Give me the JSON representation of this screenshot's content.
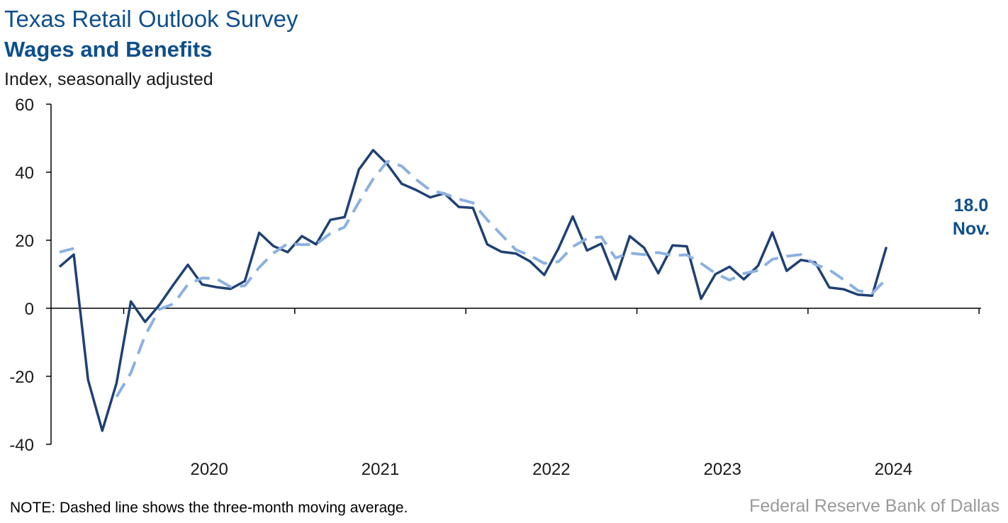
{
  "chart_data": {
    "type": "line",
    "title": "Texas Retail Outlook Survey",
    "subtitle": "Wages and Benefits",
    "ylabel": "Index, seasonally adjusted",
    "ylim": [
      -40,
      60
    ],
    "yticks": [
      -40,
      -20,
      0,
      20,
      40,
      60
    ],
    "x_tick_labels": [
      "2020",
      "2021",
      "2022",
      "2023",
      "2024"
    ],
    "x_start": "2019-08",
    "x_end": "2024-11",
    "series": [
      {
        "style": "solid",
        "color": "#1f4173",
        "values": [
          12.2,
          15.8,
          -21.0,
          -36.0,
          -22.0,
          2.0,
          -4.0,
          1.0,
          7.0,
          12.8,
          7.0,
          6.2,
          5.7,
          8.0,
          22.2,
          18.3,
          16.5,
          21.2,
          18.8,
          26.0,
          26.8,
          40.8,
          46.5,
          42.3,
          36.6,
          34.8,
          32.6,
          33.8,
          29.8,
          29.5,
          18.8,
          16.6,
          16.1,
          13.8,
          9.8,
          17.6,
          27.0,
          17.0,
          19.0,
          8.5,
          21.2,
          17.8,
          10.3,
          18.5,
          18.2,
          2.8,
          10.0,
          12.2,
          8.5,
          12.5,
          22.3,
          11.0,
          14.2,
          13.5,
          6.1,
          5.6,
          4.0,
          3.7,
          18.0
        ]
      },
      {
        "style": "dashed",
        "color": "#8cb1e0",
        "values": [
          16.5,
          17.6,
          null,
          null,
          -26.0,
          -19.0,
          -8.0,
          -0.3,
          1.3,
          7.0,
          8.9,
          8.7,
          6.3,
          6.6,
          12.0,
          16.2,
          19.0,
          18.7,
          18.8,
          22.0,
          23.9,
          31.2,
          38.0,
          43.2,
          41.8,
          37.9,
          34.7,
          33.7,
          32.1,
          31.0,
          26.0,
          21.6,
          17.2,
          15.5,
          13.2,
          13.7,
          18.1,
          20.5,
          21.0,
          14.8,
          16.2,
          15.8,
          16.4,
          15.5,
          15.7,
          13.2,
          10.3,
          8.3,
          10.2,
          11.1,
          14.4,
          15.3,
          15.8,
          12.9,
          11.3,
          8.4,
          5.2,
          4.4,
          8.6
        ]
      }
    ],
    "callout": {
      "value": "18.0",
      "label": "Nov."
    }
  },
  "note": "NOTE: Dashed line shows the three-month moving average.",
  "source": "Federal Reserve Bank of Dallas"
}
